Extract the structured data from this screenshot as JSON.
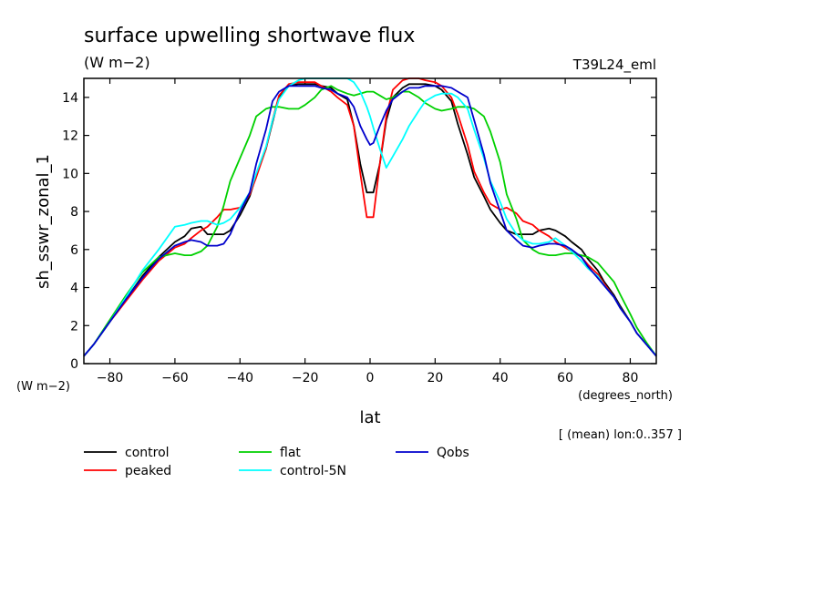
{
  "chart_data": {
    "type": "line",
    "title": "surface upwelling shortwave flux",
    "units": "(W m−2)",
    "experiment": "T39L24_eml",
    "xlabel": "lat",
    "xunits": "(degrees_north)",
    "ylabel": "sh_sswr_zonal_1",
    "yunits": "(W m−2)",
    "note": "[ (mean) lon:0..357 ]",
    "xlim": [
      -88,
      88
    ],
    "ylim": [
      0,
      15
    ],
    "xticks": [
      -80,
      -60,
      -40,
      -20,
      0,
      20,
      40,
      60,
      80
    ],
    "yticks": [
      0,
      2,
      4,
      6,
      8,
      10,
      12,
      14
    ],
    "grid": false,
    "legend_position": "bottom",
    "series": [
      {
        "name": "control",
        "color": "#000000",
        "x": [
          -88,
          -85,
          -80,
          -75,
          -70,
          -65,
          -60,
          -57,
          -55,
          -52,
          -50,
          -47,
          -45,
          -43,
          -40,
          -37,
          -35,
          -32,
          -30,
          -28,
          -25,
          -22,
          -20,
          -17,
          -15,
          -12,
          -10,
          -7,
          -5,
          -3,
          -1,
          0,
          1,
          3,
          5,
          7,
          10,
          12,
          15,
          17,
          20,
          22,
          25,
          27,
          30,
          32,
          35,
          37,
          40,
          42,
          45,
          47,
          50,
          52,
          55,
          57,
          60,
          62,
          65,
          67,
          70,
          72,
          75,
          77,
          80,
          82,
          85,
          88
        ],
        "y": [
          0.4,
          1.0,
          2.2,
          3.4,
          4.6,
          5.6,
          6.4,
          6.7,
          7.1,
          7.2,
          6.8,
          6.8,
          6.8,
          7.0,
          7.8,
          8.8,
          9.9,
          11.3,
          12.7,
          14.0,
          14.6,
          14.7,
          14.7,
          14.7,
          14.6,
          14.5,
          14.2,
          13.9,
          12.5,
          10.5,
          9.0,
          9.0,
          9.0,
          10.5,
          12.8,
          14.0,
          14.5,
          14.7,
          14.7,
          14.7,
          14.6,
          14.4,
          13.8,
          12.6,
          11.0,
          9.8,
          8.8,
          8.1,
          7.4,
          7.0,
          6.8,
          6.8,
          6.8,
          7.0,
          7.1,
          7.0,
          6.7,
          6.4,
          6.0,
          5.5,
          4.9,
          4.3,
          3.6,
          3.0,
          2.2,
          1.6,
          1.0,
          0.4
        ]
      },
      {
        "name": "peaked",
        "color": "#ff0000",
        "x": [
          -88,
          -85,
          -80,
          -75,
          -70,
          -65,
          -60,
          -57,
          -55,
          -52,
          -50,
          -47,
          -45,
          -43,
          -40,
          -37,
          -35,
          -32,
          -30,
          -28,
          -25,
          -22,
          -20,
          -17,
          -15,
          -12,
          -10,
          -7,
          -5,
          -3,
          -1,
          0,
          1,
          3,
          5,
          7,
          10,
          12,
          15,
          17,
          20,
          22,
          25,
          27,
          30,
          32,
          35,
          37,
          40,
          42,
          45,
          47,
          50,
          52,
          55,
          57,
          60,
          62,
          65,
          67,
          70,
          72,
          75,
          77,
          80,
          82,
          85,
          88
        ],
        "y": [
          0.4,
          1.0,
          2.2,
          3.3,
          4.4,
          5.4,
          6.1,
          6.3,
          6.6,
          7.0,
          7.2,
          7.7,
          8.1,
          8.1,
          8.2,
          8.9,
          9.8,
          11.3,
          12.8,
          14.1,
          14.7,
          14.8,
          14.8,
          14.8,
          14.6,
          14.3,
          14.0,
          13.6,
          12.5,
          10.0,
          7.7,
          7.7,
          7.7,
          10.5,
          13.0,
          14.4,
          14.9,
          15.0,
          15.0,
          14.9,
          14.8,
          14.6,
          14.0,
          13.1,
          11.5,
          10.1,
          9.0,
          8.4,
          8.1,
          8.2,
          7.9,
          7.5,
          7.3,
          7.0,
          6.7,
          6.4,
          6.1,
          5.9,
          5.6,
          5.2,
          4.7,
          4.2,
          3.5,
          2.9,
          2.2,
          1.6,
          1.0,
          0.4
        ]
      },
      {
        "name": "flat",
        "color": "#00d000",
        "x": [
          -88,
          -85,
          -80,
          -75,
          -70,
          -65,
          -60,
          -57,
          -55,
          -52,
          -50,
          -47,
          -45,
          -43,
          -40,
          -37,
          -35,
          -32,
          -30,
          -28,
          -25,
          -22,
          -20,
          -17,
          -15,
          -12,
          -10,
          -7,
          -5,
          -3,
          -1,
          0,
          1,
          3,
          5,
          7,
          10,
          12,
          15,
          17,
          20,
          22,
          25,
          27,
          30,
          32,
          35,
          37,
          40,
          42,
          45,
          47,
          50,
          52,
          55,
          57,
          60,
          62,
          65,
          67,
          70,
          72,
          75,
          77,
          80,
          82,
          85,
          88
        ],
        "y": [
          0.4,
          1.0,
          2.3,
          3.6,
          4.8,
          5.6,
          5.8,
          5.7,
          5.7,
          5.9,
          6.2,
          7.2,
          8.3,
          9.6,
          10.8,
          12.0,
          13.0,
          13.4,
          13.5,
          13.5,
          13.4,
          13.4,
          13.6,
          14.0,
          14.4,
          14.6,
          14.4,
          14.2,
          14.1,
          14.2,
          14.3,
          14.3,
          14.3,
          14.1,
          13.9,
          14.0,
          14.3,
          14.3,
          14.0,
          13.7,
          13.4,
          13.3,
          13.4,
          13.5,
          13.5,
          13.4,
          13.0,
          12.2,
          10.6,
          8.9,
          7.6,
          6.5,
          6.0,
          5.8,
          5.7,
          5.7,
          5.8,
          5.8,
          5.7,
          5.6,
          5.3,
          4.9,
          4.3,
          3.6,
          2.6,
          1.9,
          1.1,
          0.4
        ]
      },
      {
        "name": "control-5N",
        "color": "#00ffff",
        "x": [
          -88,
          -85,
          -80,
          -75,
          -70,
          -65,
          -60,
          -57,
          -55,
          -52,
          -50,
          -47,
          -45,
          -43,
          -40,
          -37,
          -35,
          -32,
          -30,
          -28,
          -25,
          -22,
          -20,
          -17,
          -15,
          -12,
          -10,
          -7,
          -5,
          -3,
          -1,
          0,
          1,
          3,
          5,
          7,
          10,
          12,
          15,
          17,
          20,
          22,
          25,
          27,
          30,
          32,
          35,
          37,
          40,
          42,
          45,
          47,
          50,
          52,
          55,
          57,
          60,
          62,
          65,
          67,
          70,
          72,
          75,
          77,
          80,
          82,
          85,
          88
        ],
        "y": [
          0.4,
          1.0,
          2.2,
          3.5,
          4.9,
          6.0,
          7.2,
          7.3,
          7.4,
          7.5,
          7.5,
          7.3,
          7.4,
          7.6,
          8.2,
          9.0,
          10.0,
          11.4,
          12.8,
          13.9,
          14.6,
          14.9,
          15.0,
          15.0,
          15.0,
          15.0,
          15.0,
          15.0,
          14.8,
          14.3,
          13.5,
          13.0,
          12.4,
          11.3,
          10.3,
          10.9,
          11.8,
          12.5,
          13.3,
          13.8,
          14.1,
          14.2,
          14.2,
          14.0,
          13.4,
          12.3,
          10.8,
          9.6,
          8.5,
          7.6,
          6.8,
          6.5,
          6.3,
          6.3,
          6.4,
          6.6,
          6.2,
          5.9,
          5.4,
          5.0,
          4.6,
          4.1,
          3.5,
          2.9,
          2.2,
          1.6,
          1.0,
          0.4
        ]
      },
      {
        "name": "Qobs",
        "color": "#0000cc",
        "x": [
          -88,
          -85,
          -80,
          -75,
          -70,
          -65,
          -60,
          -57,
          -55,
          -52,
          -50,
          -47,
          -45,
          -43,
          -40,
          -37,
          -35,
          -32,
          -30,
          -28,
          -25,
          -22,
          -20,
          -17,
          -15,
          -12,
          -10,
          -7,
          -5,
          -3,
          -1,
          0,
          1,
          3,
          5,
          7,
          10,
          12,
          15,
          17,
          20,
          22,
          25,
          27,
          30,
          32,
          35,
          37,
          40,
          42,
          45,
          47,
          50,
          52,
          55,
          57,
          60,
          62,
          65,
          67,
          70,
          72,
          75,
          77,
          80,
          82,
          85,
          88
        ],
        "y": [
          0.4,
          1.0,
          2.2,
          3.4,
          4.5,
          5.5,
          6.2,
          6.4,
          6.5,
          6.4,
          6.2,
          6.2,
          6.3,
          6.8,
          8.0,
          9.0,
          10.5,
          12.3,
          13.8,
          14.3,
          14.6,
          14.6,
          14.6,
          14.6,
          14.5,
          14.4,
          14.2,
          14.0,
          13.5,
          12.5,
          11.8,
          11.5,
          11.6,
          12.5,
          13.3,
          13.9,
          14.3,
          14.5,
          14.5,
          14.6,
          14.6,
          14.6,
          14.5,
          14.3,
          14.0,
          12.8,
          11.0,
          9.5,
          8.0,
          7.0,
          6.5,
          6.2,
          6.1,
          6.2,
          6.3,
          6.3,
          6.2,
          6.0,
          5.6,
          5.1,
          4.5,
          4.1,
          3.5,
          2.9,
          2.2,
          1.6,
          1.0,
          0.4
        ]
      }
    ]
  }
}
